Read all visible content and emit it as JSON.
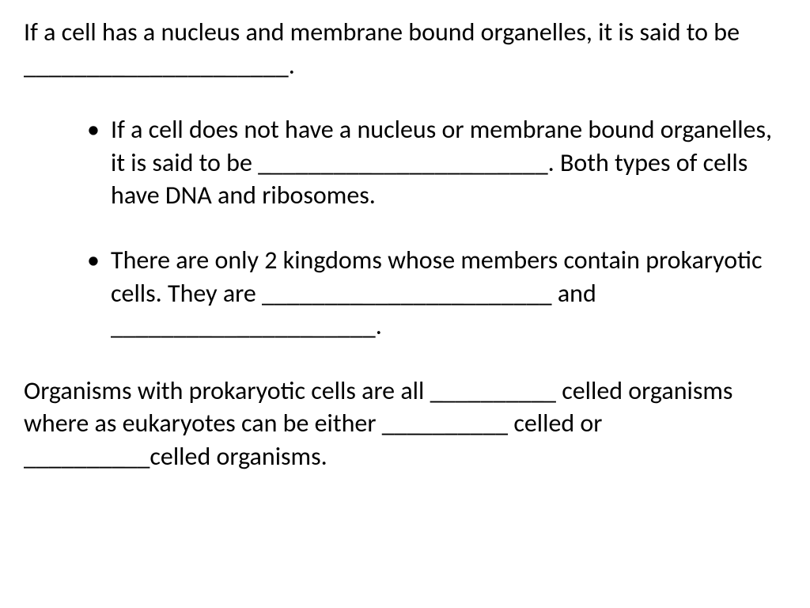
{
  "font_family": "Calibri, Arial, sans-serif",
  "font_size_pt": 32,
  "text_color": "#000000",
  "background_color": "#ffffff",
  "line_height": 1.3,
  "intro_text": "If a cell has a nucleus and membrane bound organelles, it is said to be _____________________.",
  "bullets": [
    "If a cell does not have a nucleus or membrane bound organelles, it is said to be _______________________.  Both types of cells have DNA and ribosomes.",
    "There are only 2 kingdoms whose members contain prokaryotic cells.  They are _______________________ and _____________________."
  ],
  "closing_text": "Organisms with prokaryotic cells are all __________ celled organisms where as eukaryotes can be either __________ celled or __________celled organisms."
}
